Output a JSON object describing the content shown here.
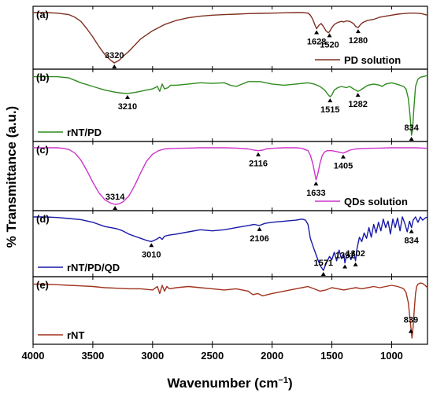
{
  "chart_data": {
    "type": "line",
    "xlabel": "Wavenumber (cm",
    "xlabel_sup": "−1",
    "xlabel_close": ")",
    "ylabel": "% Transmittance (a.u.)",
    "xlim": [
      4000,
      700
    ],
    "x_reversed": true,
    "x_ticks": [
      4000,
      3500,
      3000,
      2500,
      2000,
      1500,
      1000
    ],
    "grid": false,
    "panels": [
      {
        "label": "(a)",
        "legend": "PD solution",
        "legend_position": "bottom-right",
        "color": "#7f3020",
        "x": [
          4000,
          3900,
          3800,
          3700,
          3650,
          3600,
          3550,
          3500,
          3450,
          3400,
          3350,
          3320,
          3280,
          3250,
          3200,
          3150,
          3100,
          3000,
          2900,
          2800,
          2700,
          2600,
          2500,
          2400,
          2300,
          2200,
          2100,
          2000,
          1900,
          1800,
          1750,
          1700,
          1680,
          1660,
          1640,
          1628,
          1610,
          1590,
          1570,
          1550,
          1530,
          1520,
          1500,
          1480,
          1450,
          1420,
          1400,
          1380,
          1350,
          1320,
          1300,
          1280,
          1260,
          1240,
          1220,
          1200,
          1150,
          1100,
          1050,
          1000,
          950,
          900,
          850,
          800,
          750,
          700
        ],
        "y": [
          97,
          97,
          96,
          93,
          88,
          80,
          66,
          50,
          32,
          16,
          5,
          0,
          5,
          12,
          22,
          34,
          46,
          62,
          74,
          82,
          87,
          90,
          92,
          93,
          94,
          95,
          95.5,
          96,
          96.5,
          97,
          97,
          96,
          92,
          84,
          72,
          66,
          72,
          76,
          70,
          62,
          58,
          60,
          68,
          74,
          78,
          80,
          79,
          81,
          80,
          76,
          70,
          68,
          74,
          78,
          80,
          82,
          84,
          88,
          90,
          92,
          94,
          95,
          96,
          96,
          95,
          92
        ],
        "annotations": [
          {
            "text": "3320",
            "x": 3320
          },
          {
            "text": "1628",
            "x": 1628
          },
          {
            "text": "1520",
            "x": 1520
          },
          {
            "text": "1280",
            "x": 1280
          }
        ]
      },
      {
        "label": "(b)",
        "legend": "rNT/PD",
        "legend_position": "bottom-left",
        "color": "#2e8b1e",
        "x": [
          4000,
          3900,
          3800,
          3700,
          3650,
          3600,
          3500,
          3400,
          3300,
          3250,
          3210,
          3150,
          3100,
          3050,
          3000,
          2960,
          2940,
          2920,
          2900,
          2870,
          2850,
          2800,
          2700,
          2600,
          2500,
          2400,
          2350,
          2300,
          2250,
          2200,
          2100,
          2000,
          1900,
          1800,
          1700,
          1650,
          1600,
          1560,
          1530,
          1515,
          1500,
          1480,
          1450,
          1420,
          1380,
          1350,
          1320,
          1300,
          1282,
          1260,
          1230,
          1200,
          1150,
          1100,
          1080,
          1050,
          1000,
          960,
          930,
          900,
          880,
          860,
          845,
          834,
          825,
          815,
          800,
          780,
          760,
          740,
          720,
          700
        ],
        "y": [
          96,
          96,
          96,
          94,
          90,
          86,
          80,
          74,
          70,
          69,
          68.5,
          70,
          72,
          74,
          76,
          80,
          72,
          84,
          76,
          78,
          82,
          82,
          84,
          86,
          85,
          86,
          82,
          80,
          84,
          88,
          88,
          84,
          82,
          84,
          86,
          84,
          80,
          74,
          66,
          63,
          66,
          74,
          78,
          80,
          78,
          80,
          76,
          74,
          72,
          74,
          78,
          82,
          84,
          82,
          80,
          84,
          86,
          84,
          82,
          80,
          76,
          60,
          30,
          0,
          8,
          40,
          80,
          92,
          95,
          96,
          97,
          98
        ],
        "annotations": [
          {
            "text": "3210",
            "x": 3210
          },
          {
            "text": "1515",
            "x": 1515
          },
          {
            "text": "1282",
            "x": 1282
          },
          {
            "text": "834",
            "x": 834
          }
        ]
      },
      {
        "label": "(c)",
        "legend": "QDs solution",
        "legend_position": "bottom-right",
        "color": "#cc33cc",
        "x": [
          4000,
          3900,
          3800,
          3750,
          3700,
          3650,
          3600,
          3550,
          3500,
          3450,
          3400,
          3350,
          3314,
          3280,
          3250,
          3200,
          3150,
          3100,
          3050,
          3000,
          2950,
          2900,
          2800,
          2700,
          2600,
          2500,
          2400,
          2300,
          2200,
          2150,
          2116,
          2080,
          2050,
          2000,
          1900,
          1800,
          1750,
          1700,
          1680,
          1660,
          1640,
          1633,
          1620,
          1600,
          1580,
          1560,
          1540,
          1500,
          1450,
          1405,
          1380,
          1350,
          1300,
          1200,
          1100,
          1000,
          900,
          800,
          700
        ],
        "y": [
          97,
          97,
          97,
          96,
          94,
          88,
          76,
          58,
          38,
          20,
          8,
          2,
          0,
          1,
          4,
          14,
          32,
          54,
          74,
          86,
          92,
          95,
          96,
          96.5,
          97,
          97,
          97,
          96.5,
          95,
          93,
          92,
          93,
          95,
          96,
          97,
          97,
          96,
          92,
          84,
          70,
          50,
          42,
          50,
          70,
          84,
          90,
          92,
          92,
          90,
          88,
          90,
          93,
          95,
          96,
          96.5,
          97,
          97,
          97,
          96
        ],
        "annotations": [
          {
            "text": "3314",
            "x": 3314
          },
          {
            "text": "2116",
            "x": 2116
          },
          {
            "text": "1633",
            "x": 1633
          },
          {
            "text": "1405",
            "x": 1405
          }
        ]
      },
      {
        "label": "(d)",
        "legend": "rNT/PD/QD",
        "legend_position": "bottom-left",
        "color": "#1a1aaa",
        "x": [
          4000,
          3900,
          3800,
          3700,
          3600,
          3500,
          3450,
          3400,
          3350,
          3300,
          3250,
          3200,
          3150,
          3100,
          3050,
          3010,
          2970,
          2940,
          2920,
          2900,
          2860,
          2800,
          2700,
          2600,
          2500,
          2400,
          2300,
          2200,
          2150,
          2106,
          2060,
          2000,
          1900,
          1800,
          1750,
          1720,
          1700,
          1680,
          1650,
          1620,
          1600,
          1571,
          1550,
          1520,
          1500,
          1480,
          1460,
          1440,
          1420,
          1400,
          1391,
          1380,
          1360,
          1340,
          1320,
          1302,
          1290,
          1270,
          1250,
          1230,
          1210,
          1190,
          1170,
          1150,
          1130,
          1110,
          1090,
          1070,
          1050,
          1030,
          1010,
          990,
          970,
          950,
          930,
          910,
          890,
          870,
          850,
          834,
          820,
          800,
          780,
          760,
          740,
          720,
          700
        ],
        "y": [
          100,
          100,
          99,
          97,
          95,
          90,
          86,
          82,
          80,
          78,
          74,
          68,
          64,
          60,
          56,
          54,
          58,
          62,
          58,
          64,
          66,
          68,
          72,
          76,
          74,
          76,
          80,
          84,
          86,
          84,
          88,
          90,
          92,
          94,
          96,
          94,
          86,
          60,
          40,
          22,
          10,
          0,
          12,
          26,
          20,
          34,
          18,
          38,
          22,
          30,
          14,
          26,
          32,
          20,
          36,
          18,
          40,
          62,
          54,
          70,
          60,
          80,
          62,
          86,
          70,
          90,
          74,
          96,
          80,
          92,
          68,
          96,
          80,
          98,
          74,
          100,
          88,
          72,
          92,
          80,
          94,
          100,
          90,
          100,
          94,
          98,
          100
        ],
        "annotations": [
          {
            "text": "3010",
            "x": 3010
          },
          {
            "text": "2106",
            "x": 2106
          },
          {
            "text": "1571",
            "x": 1571
          },
          {
            "text": "1391",
            "x": 1391
          },
          {
            "text": "1302",
            "x": 1302
          },
          {
            "text": "834",
            "x": 834
          }
        ]
      },
      {
        "label": "(e)",
        "legend": "rNT",
        "legend_position": "bottom-left",
        "color": "#a0331e",
        "x": [
          4000,
          3900,
          3800,
          3700,
          3600,
          3500,
          3400,
          3300,
          3200,
          3100,
          3000,
          2960,
          2940,
          2920,
          2900,
          2880,
          2860,
          2800,
          2700,
          2600,
          2500,
          2400,
          2300,
          2200,
          2160,
          2120,
          2080,
          2040,
          2000,
          1950,
          1900,
          1850,
          1800,
          1750,
          1700,
          1650,
          1600,
          1550,
          1500,
          1450,
          1400,
          1350,
          1300,
          1250,
          1200,
          1150,
          1100,
          1050,
          1000,
          950,
          920,
          900,
          880,
          860,
          850,
          839,
          830,
          820,
          810,
          800,
          790,
          780,
          760,
          740,
          720,
          700
        ],
        "y": [
          92,
          92,
          91,
          90,
          89,
          88,
          86,
          85,
          84,
          84,
          82,
          88,
          76,
          90,
          80,
          88,
          84,
          86,
          88,
          86,
          84,
          82,
          84,
          80,
          74,
          76,
          72,
          74,
          76,
          78,
          80,
          82,
          84,
          86,
          88,
          84,
          80,
          82,
          86,
          84,
          82,
          84,
          86,
          84,
          86,
          88,
          86,
          88,
          90,
          88,
          86,
          84,
          78,
          60,
          40,
          18,
          0,
          20,
          50,
          76,
          88,
          92,
          94,
          93,
          90,
          86
        ],
        "annotations": [
          {
            "text": "839",
            "x": 839
          }
        ]
      }
    ]
  }
}
